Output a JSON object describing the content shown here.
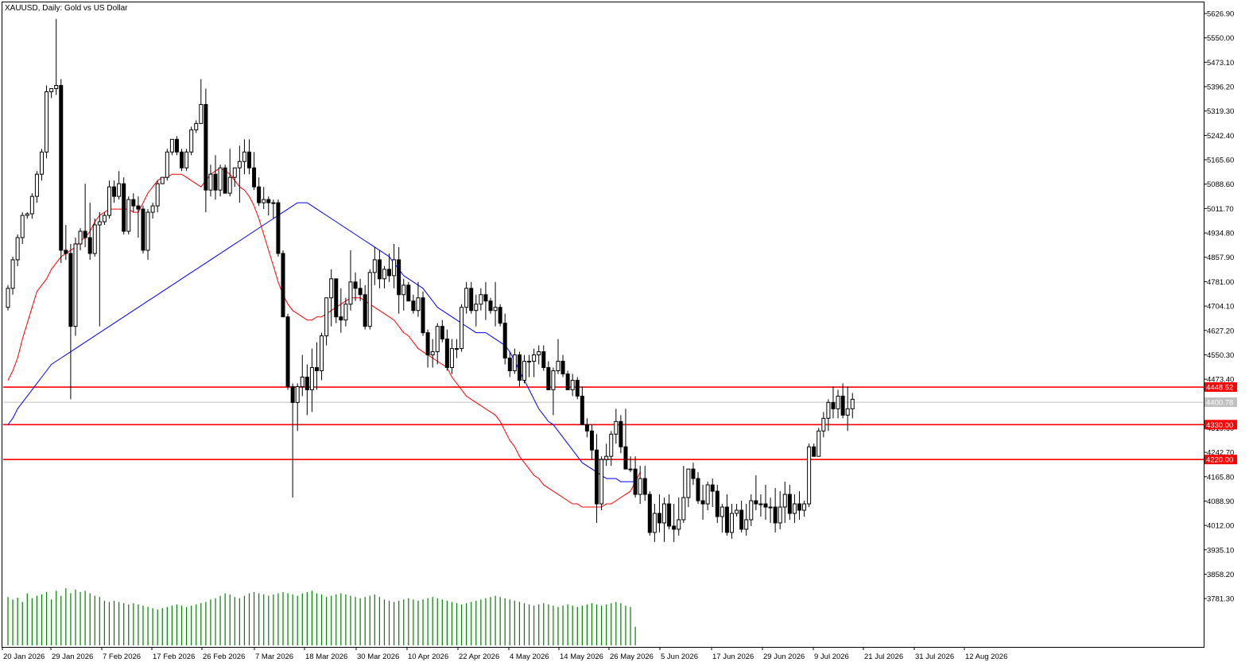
{
  "window": {
    "symbol_title": "XAUUSD, Daily:  Gold vs US Dollar"
  },
  "colors": {
    "background": "#ffffff",
    "candle": "#000000",
    "ma_fast": "#ff0000",
    "ma_slow": "#0000ff",
    "volume": "#008000",
    "level_line": "#ff0000",
    "current_price_line": "#c0c0c0"
  },
  "chart_data": {
    "type": "candlestick",
    "symbol": "XAUUSD",
    "timeframe": "Daily",
    "description": "Gold vs US Dollar",
    "ylim": [
      3704.0,
      5626.9
    ],
    "price_axis_ticks": [
      "5626.90",
      "5550.00",
      "5473.10",
      "5396.20",
      "5319.30",
      "5242.40",
      "5165.60",
      "5088.60",
      "5011.70",
      "4934.80",
      "4857.90",
      "4781.00",
      "4704.10",
      "4627.20",
      "4550.30",
      "4473.40",
      "4396.50",
      "4319.60",
      "4242.70",
      "4165.80",
      "4088.90",
      "4012.00",
      "3935.10",
      "3858.20",
      "3781.30"
    ],
    "date_labels": [
      "20 Jan 2026",
      "29 Jan 2026",
      "7 Feb 2026",
      "17 Feb 2026",
      "26 Feb 2026",
      "7 Mar 2026",
      "18 Mar 2026",
      "30 Mar 2026",
      "10 Apr 2026",
      "22 Apr 2026",
      "4 May 2026",
      "14 May 2026",
      "26 May 2026",
      "5 Jun 2026",
      "17 Jun 2026",
      "29 Jun 2026",
      "9 Jul 2026",
      "21 Jul 2026",
      "31 Jul 2026",
      "12 Aug 2026"
    ],
    "horizontal_levels": [
      {
        "price": 4448.52,
        "label": "4448.52"
      },
      {
        "price": 4330.0,
        "label": "4330.00"
      },
      {
        "price": 4220.0,
        "label": "4220.00"
      }
    ],
    "current_price": {
      "price": 4400.78,
      "label": "4400.78"
    },
    "candles": [
      [
        4700,
        4770,
        4690,
        4760
      ],
      [
        4760,
        4860,
        4740,
        4850
      ],
      [
        4850,
        4930,
        4830,
        4920
      ],
      [
        4920,
        5000,
        4900,
        4990
      ],
      [
        4990,
        5000,
        4980,
        4995
      ],
      [
        4995,
        5060,
        4980,
        5050
      ],
      [
        5050,
        5130,
        5030,
        5120
      ],
      [
        5120,
        5200,
        5100,
        5190
      ],
      [
        5190,
        5400,
        5170,
        5380
      ],
      [
        5380,
        5390,
        5360,
        5390
      ],
      [
        5390,
        5610,
        5370,
        5400
      ],
      [
        5400,
        5420,
        4840,
        4880
      ],
      [
        4880,
        4960,
        4850,
        4870
      ],
      [
        4870,
        4900,
        4410,
        4640
      ],
      [
        4640,
        4920,
        4610,
        4900
      ],
      [
        4900,
        4950,
        4880,
        4940
      ],
      [
        4940,
        5090,
        4890,
        4920
      ],
      [
        4920,
        5030,
        4850,
        4870
      ],
      [
        4870,
        4980,
        4860,
        4960
      ],
      [
        4960,
        5000,
        4640,
        4970
      ],
      [
        4970,
        5000,
        4960,
        4990
      ],
      [
        4990,
        5100,
        4980,
        5080
      ],
      [
        5080,
        5100,
        5030,
        5050
      ],
      [
        5050,
        5130,
        5040,
        5090
      ],
      [
        5090,
        5110,
        4930,
        4940
      ],
      [
        4940,
        5050,
        4930,
        5040
      ],
      [
        5040,
        5060,
        5000,
        5020
      ],
      [
        5020,
        5050,
        4920,
        5010
      ],
      [
        5010,
        5020,
        4870,
        4880
      ],
      [
        4880,
        5010,
        4850,
        5000
      ],
      [
        5000,
        5030,
        4980,
        5020
      ],
      [
        5020,
        5100,
        5000,
        5090
      ],
      [
        5090,
        5110,
        5090,
        5110
      ],
      [
        5110,
        5200,
        5100,
        5190
      ],
      [
        5190,
        5230,
        5180,
        5230
      ],
      [
        5230,
        5240,
        5180,
        5190
      ],
      [
        5190,
        5200,
        5130,
        5140
      ],
      [
        5140,
        5200,
        5130,
        5190
      ],
      [
        5190,
        5270,
        5180,
        5260
      ],
      [
        5260,
        5290,
        5250,
        5280
      ],
      [
        5280,
        5420,
        5280,
        5340
      ],
      [
        5340,
        5390,
        5000,
        5070
      ],
      [
        5070,
        5150,
        5050,
        5120
      ],
      [
        5120,
        5180,
        5040,
        5070
      ],
      [
        5070,
        5150,
        5050,
        5140
      ],
      [
        5140,
        5150,
        5060,
        5060
      ],
      [
        5060,
        5200,
        5050,
        5110
      ],
      [
        5110,
        5130,
        5080,
        5140
      ],
      [
        5140,
        5210,
        5030,
        5160
      ],
      [
        5160,
        5230,
        5120,
        5190
      ],
      [
        5190,
        5230,
        5120,
        5140
      ],
      [
        5140,
        5190,
        5070,
        5080
      ],
      [
        5080,
        5110,
        5020,
        5030
      ],
      [
        5030,
        5080,
        5010,
        5040
      ],
      [
        5040,
        5050,
        4990,
        5030
      ],
      [
        5030,
        5040,
        4980,
        5030
      ],
      [
        5030,
        5040,
        4860,
        4870
      ],
      [
        4870,
        4880,
        4670,
        4670
      ],
      [
        4670,
        4680,
        4440,
        4450
      ],
      [
        4450,
        4460,
        4100,
        4400
      ],
      [
        4400,
        4460,
        4310,
        4450
      ],
      [
        4450,
        4550,
        4420,
        4480
      ],
      [
        4480,
        4520,
        4360,
        4440
      ],
      [
        4440,
        4570,
        4370,
        4510
      ],
      [
        4510,
        4590,
        4440,
        4500
      ],
      [
        4500,
        4620,
        4470,
        4610
      ],
      [
        4610,
        4720,
        4580,
        4730
      ],
      [
        4730,
        4820,
        4640,
        4790
      ],
      [
        4790,
        4780,
        4650,
        4670
      ],
      [
        4670,
        4760,
        4620,
        4660
      ],
      [
        4660,
        4730,
        4640,
        4710
      ],
      [
        4710,
        4880,
        4690,
        4780
      ],
      [
        4780,
        4810,
        4720,
        4760
      ],
      [
        4760,
        4790,
        4720,
        4740
      ],
      [
        4740,
        4770,
        4630,
        4640
      ],
      [
        4640,
        4820,
        4630,
        4810
      ],
      [
        4810,
        4890,
        4770,
        4850
      ],
      [
        4850,
        4880,
        4760,
        4790
      ],
      [
        4790,
        4830,
        4760,
        4820
      ],
      [
        4820,
        4870,
        4780,
        4800
      ],
      [
        4800,
        4900,
        4760,
        4850
      ],
      [
        4850,
        4890,
        4680,
        4740
      ],
      [
        4740,
        4790,
        4690,
        4770
      ],
      [
        4770,
        4780,
        4720,
        4720
      ],
      [
        4720,
        4740,
        4680,
        4690
      ],
      [
        4690,
        4780,
        4670,
        4730
      ],
      [
        4730,
        4750,
        4610,
        4620
      ],
      [
        4620,
        4630,
        4510,
        4550
      ],
      [
        4550,
        4600,
        4510,
        4560
      ],
      [
        4560,
        4650,
        4520,
        4640
      ],
      [
        4640,
        4660,
        4590,
        4600
      ],
      [
        4600,
        4630,
        4500,
        4510
      ],
      [
        4510,
        4600,
        4490,
        4570
      ],
      [
        4570,
        4600,
        4540,
        4570
      ],
      [
        4570,
        4710,
        4560,
        4700
      ],
      [
        4700,
        4780,
        4680,
        4760
      ],
      [
        4760,
        4780,
        4680,
        4690
      ],
      [
        4690,
        4740,
        4640,
        4710
      ],
      [
        4710,
        4760,
        4690,
        4740
      ],
      [
        4740,
        4780,
        4660,
        4720
      ],
      [
        4720,
        4730,
        4680,
        4690
      ],
      [
        4690,
        4780,
        4640,
        4700
      ],
      [
        4700,
        4710,
        4640,
        4650
      ],
      [
        4650,
        4680,
        4520,
        4540
      ],
      [
        4540,
        4560,
        4480,
        4500
      ],
      [
        4500,
        4570,
        4490,
        4550
      ],
      [
        4550,
        4560,
        4450,
        4470
      ],
      [
        4470,
        4550,
        4460,
        4530
      ],
      [
        4530,
        4550,
        4480,
        4530
      ],
      [
        4530,
        4570,
        4480,
        4550
      ],
      [
        4550,
        4580,
        4520,
        4560
      ],
      [
        4560,
        4580,
        4500,
        4510
      ],
      [
        4510,
        4530,
        4440,
        4440
      ],
      [
        4440,
        4510,
        4360,
        4500
      ],
      [
        4500,
        4600,
        4490,
        4530
      ],
      [
        4530,
        4550,
        4480,
        4490
      ],
      [
        4490,
        4500,
        4440,
        4440
      ],
      [
        4440,
        4490,
        4420,
        4470
      ],
      [
        4470,
        4480,
        4410,
        4420
      ],
      [
        4420,
        4450,
        4330,
        4330
      ],
      [
        4330,
        4350,
        4290,
        4310
      ],
      [
        4310,
        4330,
        4220,
        4250
      ],
      [
        4250,
        4300,
        4020,
        4080
      ],
      [
        4080,
        4230,
        4060,
        4220
      ],
      [
        4220,
        4270,
        4200,
        4230
      ],
      [
        4230,
        4310,
        4200,
        4300
      ],
      [
        4300,
        4380,
        4270,
        4340
      ],
      [
        4340,
        4360,
        4240,
        4260
      ],
      [
        4260,
        4380,
        4190,
        4190
      ],
      [
        4190,
        4230,
        4180,
        4190
      ],
      [
        4190,
        4230,
        4100,
        4110
      ],
      [
        4110,
        4200,
        4080,
        4160
      ],
      [
        4160,
        4200,
        4090,
        4110
      ],
      [
        4110,
        4120,
        3980,
        3990
      ],
      [
        3990,
        4080,
        3960,
        4050
      ],
      [
        4050,
        4110,
        3990,
        4020
      ],
      [
        4020,
        4100,
        3960,
        4080
      ],
      [
        4080,
        4110,
        4000,
        4010
      ],
      [
        4010,
        4080,
        3960,
        4000
      ],
      [
        4000,
        4100,
        3980,
        4030
      ],
      [
        4030,
        4200,
        4020,
        4100
      ],
      [
        4100,
        4190,
        4070,
        4190
      ],
      [
        4190,
        4210,
        4140,
        4160
      ],
      [
        4160,
        4180,
        4080,
        4090
      ],
      [
        4090,
        4140,
        4030,
        4080
      ],
      [
        4080,
        4150,
        4060,
        4140
      ],
      [
        4140,
        4160,
        4070,
        4120
      ],
      [
        4120,
        4140,
        4020,
        4040
      ],
      [
        4040,
        4080,
        3990,
        4070
      ],
      [
        4070,
        4110,
        3980,
        3990
      ],
      [
        3990,
        4080,
        3970,
        4050
      ],
      [
        4050,
        4080,
        4040,
        4060
      ],
      [
        4060,
        4090,
        3990,
        4000
      ],
      [
        4000,
        4080,
        3980,
        4030
      ],
      [
        4030,
        4110,
        4010,
        4090
      ],
      [
        4090,
        4170,
        4060,
        4080
      ],
      [
        4080,
        4110,
        4040,
        4080
      ],
      [
        4080,
        4140,
        4030,
        4070
      ],
      [
        4070,
        4100,
        4020,
        4070
      ],
      [
        4070,
        4130,
        3990,
        4020
      ],
      [
        4020,
        4120,
        4000,
        4070
      ],
      [
        4070,
        4150,
        4020,
        4110
      ],
      [
        4110,
        4140,
        4030,
        4050
      ],
      [
        4050,
        4110,
        4020,
        4080
      ],
      [
        4080,
        4120,
        4030,
        4060
      ],
      [
        4060,
        4090,
        4040,
        4080
      ],
      [
        4080,
        4270,
        4070,
        4260
      ],
      [
        4260,
        4270,
        4230,
        4230
      ],
      [
        4230,
        4320,
        4230,
        4310
      ],
      [
        4310,
        4370,
        4290,
        4350
      ],
      [
        4350,
        4410,
        4310,
        4400
      ],
      [
        4400,
        4450,
        4350,
        4380
      ],
      [
        4380,
        4440,
        4350,
        4420
      ],
      [
        4420,
        4460,
        4350,
        4360
      ],
      [
        4360,
        4450,
        4310,
        4380
      ],
      [
        4380,
        4430,
        4350,
        4410
      ]
    ],
    "ma_fast": [
      4470,
      4500,
      4540,
      4600,
      4650,
      4700,
      4750,
      4770,
      4790,
      4820,
      4840,
      4860,
      4870,
      4880,
      4890,
      4910,
      4920,
      4940,
      4970,
      4990,
      5000,
      5010,
      5010,
      5010,
      5010,
      5010,
      5000,
      5000,
      5030,
      5060,
      5080,
      5100,
      5110,
      5110,
      5120,
      5120,
      5120,
      5110,
      5100,
      5090,
      5080,
      5100,
      5120,
      5130,
      5140,
      5130,
      5120,
      5100,
      5080,
      5070,
      5050,
      5020,
      4980,
      4930,
      4880,
      4830,
      4780,
      4740,
      4710,
      4690,
      4680,
      4670,
      4660,
      4660,
      4670,
      4670,
      4680,
      4690,
      4700,
      4710,
      4720,
      4730,
      4730,
      4730,
      4720,
      4710,
      4700,
      4690,
      4680,
      4670,
      4660,
      4640,
      4620,
      4610,
      4590,
      4570,
      4560,
      4550,
      4540,
      4530,
      4520,
      4510,
      4480,
      4460,
      4440,
      4420,
      4410,
      4400,
      4390,
      4380,
      4370,
      4360,
      4340,
      4310,
      4280,
      4260,
      4230,
      4210,
      4190,
      4170,
      4160,
      4140,
      4130,
      4120,
      4110,
      4100,
      4090,
      4080,
      4080,
      4070,
      4070,
      4070,
      4070,
      4070,
      4080,
      4080,
      4090,
      4100,
      4110,
      4120,
      4150,
      4180
    ],
    "ma_slow": [
      4330,
      4350,
      4380,
      4400,
      4420,
      4440,
      4460,
      4480,
      4500,
      4520,
      4530,
      4540,
      4550,
      4560,
      4570,
      4580,
      4590,
      4600,
      4610,
      4620,
      4630,
      4640,
      4650,
      4660,
      4670,
      4680,
      4690,
      4700,
      4710,
      4720,
      4730,
      4740,
      4750,
      4760,
      4770,
      4780,
      4790,
      4800,
      4810,
      4820,
      4830,
      4840,
      4850,
      4860,
      4870,
      4880,
      4890,
      4900,
      4910,
      4920,
      4930,
      4940,
      4950,
      4960,
      4970,
      4980,
      4990,
      5000,
      5010,
      5020,
      5030,
      5030,
      5030,
      5020,
      5010,
      5000,
      4990,
      4980,
      4970,
      4960,
      4950,
      4940,
      4930,
      4920,
      4910,
      4900,
      4890,
      4880,
      4870,
      4860,
      4840,
      4820,
      4800,
      4790,
      4780,
      4770,
      4760,
      4740,
      4720,
      4700,
      4690,
      4680,
      4670,
      4660,
      4650,
      4640,
      4630,
      4620,
      4620,
      4620,
      4610,
      4600,
      4590,
      4580,
      4560,
      4530,
      4500,
      4470,
      4440,
      4410,
      4380,
      4360,
      4340,
      4330,
      4310,
      4290,
      4270,
      4250,
      4230,
      4210,
      4200,
      4190,
      4180,
      4170,
      4160,
      4160,
      4160,
      4150,
      4150,
      4150,
      4150
    ],
    "volume": [
      0.78,
      0.74,
      0.77,
      0.7,
      0.84,
      0.76,
      0.8,
      0.82,
      0.86,
      0.74,
      0.88,
      0.8,
      0.92,
      0.84,
      0.9,
      0.86,
      0.88,
      0.84,
      0.8,
      0.78,
      0.72,
      0.7,
      0.72,
      0.7,
      0.68,
      0.66,
      0.68,
      0.66,
      0.64,
      0.62,
      0.6,
      0.58,
      0.6,
      0.62,
      0.64,
      0.66,
      0.64,
      0.62,
      0.64,
      0.66,
      0.68,
      0.7,
      0.74,
      0.76,
      0.8,
      0.84,
      0.82,
      0.78,
      0.76,
      0.8,
      0.84,
      0.86,
      0.84,
      0.82,
      0.8,
      0.82,
      0.84,
      0.86,
      0.84,
      0.82,
      0.8,
      0.84,
      0.86,
      0.88,
      0.84,
      0.82,
      0.78,
      0.8,
      0.82,
      0.84,
      0.82,
      0.8,
      0.78,
      0.76,
      0.78,
      0.8,
      0.82,
      0.78,
      0.74,
      0.72,
      0.7,
      0.72,
      0.74,
      0.76,
      0.74,
      0.72,
      0.74,
      0.76,
      0.78,
      0.76,
      0.74,
      0.72,
      0.7,
      0.68,
      0.66,
      0.68,
      0.7,
      0.72,
      0.74,
      0.76,
      0.78,
      0.8,
      0.78,
      0.76,
      0.74,
      0.72,
      0.7,
      0.68,
      0.66,
      0.64,
      0.66,
      0.68,
      0.66,
      0.64,
      0.62,
      0.64,
      0.66,
      0.64,
      0.62,
      0.64,
      0.66,
      0.68,
      0.66,
      0.64,
      0.66,
      0.68,
      0.7,
      0.68,
      0.64,
      0.62,
      0.3
    ]
  }
}
